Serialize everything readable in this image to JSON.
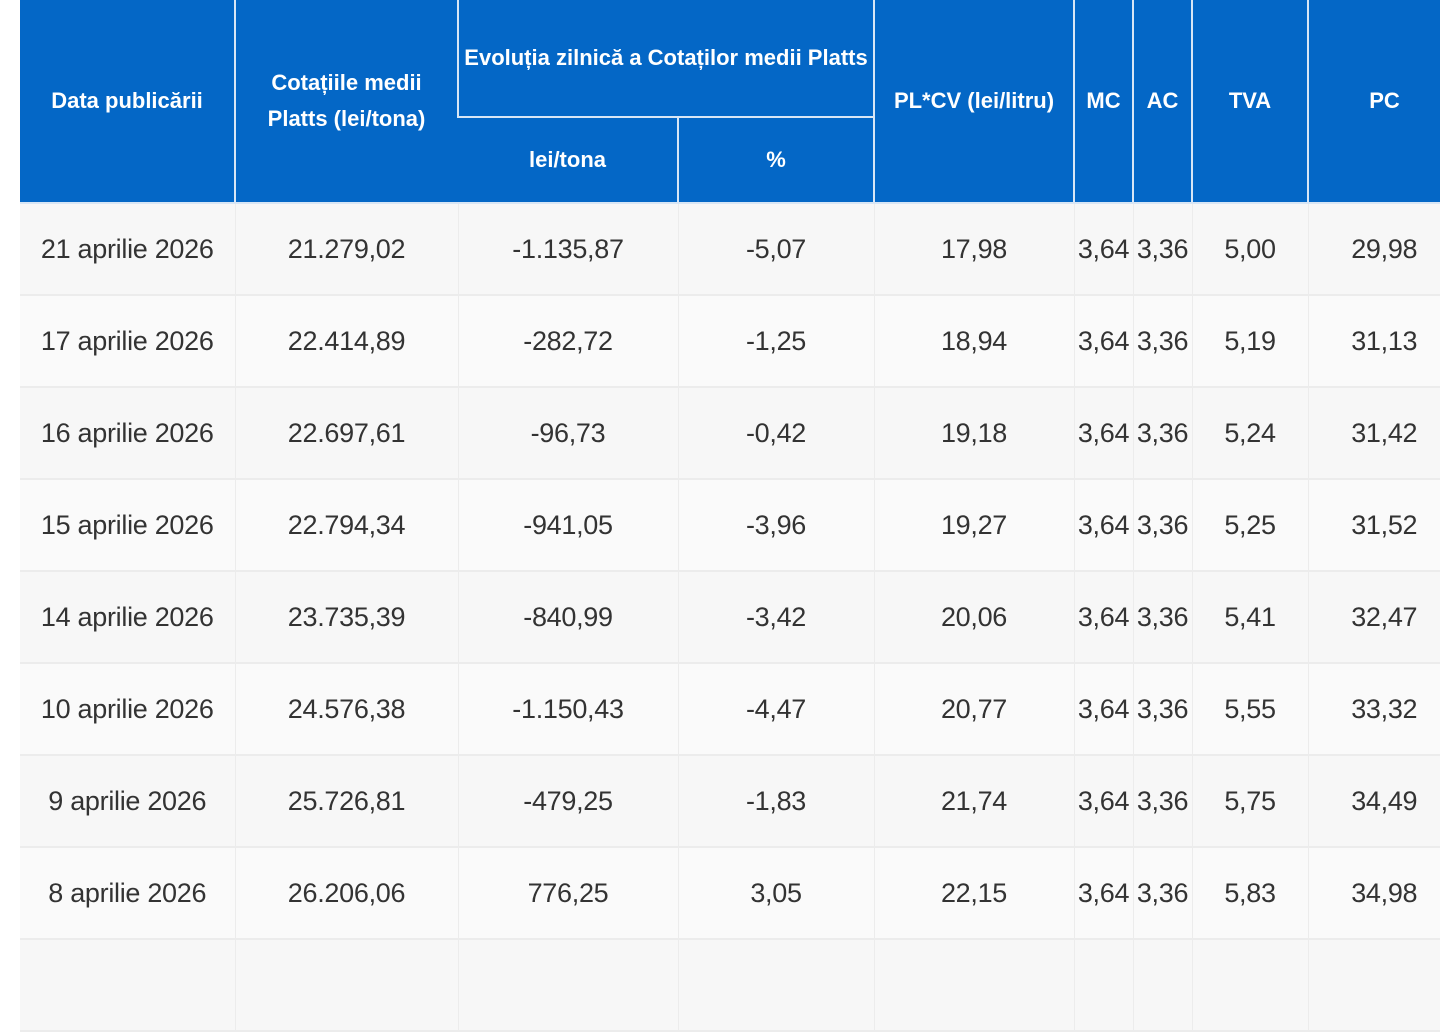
{
  "table": {
    "headers": {
      "date": "Data publicării",
      "platts": "Cotațiile medii Platts (lei/tona)",
      "evolution": "Evoluția zilnică a Cotaților medii Platts",
      "evolution_lei": "lei/tona",
      "evolution_pct": "%",
      "plcv": "PL*CV (lei/litru)",
      "mc": "MC",
      "ac": "AC",
      "tva": "TVA",
      "pc": "PC"
    },
    "header_color": "#0467c6",
    "rows": [
      [
        "21 aprilie 2026",
        "21.279,02",
        "-1.135,87",
        "-5,07",
        "17,98",
        "3,64",
        "3,36",
        "5,00",
        "29,98"
      ],
      [
        "17 aprilie 2026",
        "22.414,89",
        "-282,72",
        "-1,25",
        "18,94",
        "3,64",
        "3,36",
        "5,19",
        "31,13"
      ],
      [
        "16 aprilie 2026",
        "22.697,61",
        "-96,73",
        "-0,42",
        "19,18",
        "3,64",
        "3,36",
        "5,24",
        "31,42"
      ],
      [
        "15 aprilie 2026",
        "22.794,34",
        "-941,05",
        "-3,96",
        "19,27",
        "3,64",
        "3,36",
        "5,25",
        "31,52"
      ],
      [
        "14 aprilie 2026",
        "23.735,39",
        "-840,99",
        "-3,42",
        "20,06",
        "3,64",
        "3,36",
        "5,41",
        "32,47"
      ],
      [
        "10 aprilie 2026",
        "24.576,38",
        "-1.150,43",
        "-4,47",
        "20,77",
        "3,64",
        "3,36",
        "5,55",
        "33,32"
      ],
      [
        "9 aprilie 2026",
        "25.726,81",
        "-479,25",
        "-1,83",
        "21,74",
        "3,64",
        "3,36",
        "5,75",
        "34,49"
      ],
      [
        "8 aprilie 2026",
        "26.206,06",
        "776,25",
        "3,05",
        "22,15",
        "3,64",
        "3,36",
        "5,83",
        "34,98"
      ],
      [
        "",
        "",
        "",
        "",
        "",
        "",
        "",
        "",
        ""
      ]
    ]
  }
}
